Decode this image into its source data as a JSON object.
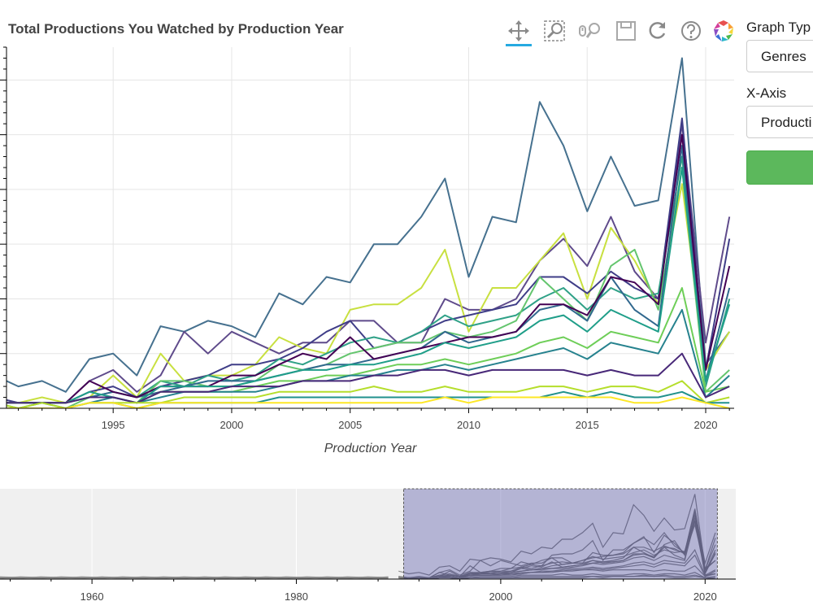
{
  "title": "Total Productions You Watched by Production Year",
  "toolbar": {
    "tools": [
      {
        "name": "pan-tool",
        "icon": "pan-icon",
        "active": true
      },
      {
        "name": "box-zoom-tool",
        "icon": "box-zoom-icon",
        "active": false
      },
      {
        "name": "wheel-zoom-tool",
        "icon": "wheel-zoom-icon",
        "active": false
      },
      {
        "name": "save-tool",
        "icon": "save-icon",
        "active": false
      },
      {
        "name": "reset-tool",
        "icon": "reset-icon",
        "active": false
      },
      {
        "name": "help-tool",
        "icon": "help-icon",
        "active": false
      },
      {
        "name": "bokeh-logo",
        "icon": "bokeh-logo-icon",
        "active": false
      }
    ],
    "active_color": "#26aae1"
  },
  "sidebar": {
    "graph_type_label": "Graph Typ",
    "graph_type_value": "Genres",
    "x_axis_label": "X-Axis",
    "x_axis_value": "Producti",
    "button_color": "#5cb85c"
  },
  "chart_data": [
    {
      "type": "line",
      "title": "Total Productions You Watched by Production Year",
      "xlabel": "Production Year",
      "ylabel": "",
      "xlim": [
        1990.5,
        2021.2
      ],
      "ylim": [
        0,
        33
      ],
      "xticks": [
        1995,
        2000,
        2005,
        2010,
        2015,
        2020
      ],
      "x": [
        1990,
        1991,
        1992,
        1993,
        1994,
        1995,
        1996,
        1997,
        1998,
        1999,
        2000,
        2001,
        2002,
        2003,
        2004,
        2005,
        2006,
        2007,
        2008,
        2009,
        2010,
        2011,
        2012,
        2013,
        2014,
        2015,
        2016,
        2017,
        2018,
        2019,
        2020,
        2021
      ],
      "grid": true,
      "series": [
        {
          "color": "#46718f",
          "values": [
            3,
            2,
            2.5,
            1.5,
            4.5,
            5,
            3,
            7.5,
            7,
            8,
            7.5,
            6.5,
            10.5,
            9.5,
            12,
            11.5,
            15,
            15,
            17.5,
            21,
            12,
            17.5,
            17,
            28,
            24,
            18,
            23,
            18.5,
            19,
            32,
            4,
            7
          ]
        },
        {
          "color": "#5f4b8b",
          "values": [
            1,
            0.5,
            0.5,
            0.5,
            2.5,
            3.5,
            1.5,
            3,
            7,
            5,
            7,
            6,
            5,
            6,
            6,
            8,
            8,
            6,
            6,
            10,
            9,
            9,
            10,
            13.5,
            15.5,
            13,
            17.5,
            12.5,
            10,
            26,
            6,
            17.5
          ]
        },
        {
          "color": "#c8e040",
          "values": [
            0.5,
            0.5,
            1,
            0.5,
            1,
            3,
            1,
            5,
            2.5,
            3,
            3,
            4,
            6.5,
            5.5,
            5,
            9,
            9.5,
            9.5,
            11,
            14.5,
            7,
            11,
            11,
            13.5,
            16,
            10,
            16.5,
            13.5,
            9.5,
            20.5,
            3.5,
            7
          ]
        },
        {
          "color": "#3f3d87",
          "values": [
            1,
            0.5,
            0.5,
            0.5,
            1.5,
            2,
            1,
            2,
            2.5,
            3,
            4,
            4,
            4.5,
            5.5,
            7,
            8,
            5.5,
            6,
            7,
            8,
            8.5,
            9,
            9.5,
            12,
            12,
            10.5,
            12.5,
            11,
            10,
            26.5,
            3.5,
            15.5
          ]
        },
        {
          "color": "#2fa187",
          "values": [
            0.5,
            0.5,
            0.5,
            0.5,
            1,
            1.5,
            1,
            2.5,
            2,
            3,
            2.5,
            3,
            4.5,
            4,
            5,
            6,
            6.5,
            6,
            7,
            8.5,
            7.5,
            8,
            8.5,
            10,
            11,
            9,
            11,
            10,
            10.5,
            23,
            2,
            10
          ]
        },
        {
          "color": "#64c56e",
          "values": [
            0.5,
            0,
            0.5,
            0,
            1,
            1,
            0.5,
            2.5,
            2.5,
            2,
            2,
            2.5,
            4,
            3.5,
            4,
            5,
            5.5,
            6,
            6,
            7,
            6.5,
            7,
            8,
            12,
            10,
            8,
            13,
            14.5,
            9,
            22,
            1.5,
            3.5
          ]
        },
        {
          "color": "#31688e",
          "values": [
            0.5,
            0.5,
            0.5,
            0.5,
            1,
            1.5,
            1,
            1.5,
            2,
            2.5,
            2.5,
            2.5,
            3,
            3.5,
            4,
            4,
            4.5,
            5,
            5.5,
            7,
            6,
            6.5,
            7,
            9,
            9.5,
            8,
            12,
            9,
            7.5,
            24,
            2.5,
            11
          ]
        },
        {
          "color": "#440154",
          "values": [
            0.5,
            0.5,
            0.5,
            0.5,
            2.5,
            1.5,
            1,
            2,
            2,
            2,
            3,
            3,
            4,
            5,
            4.5,
            6.5,
            4.5,
            5,
            5.5,
            6,
            6.5,
            6.5,
            7,
            9.5,
            9.5,
            8.5,
            12,
            11.5,
            9.5,
            25,
            3.5,
            13
          ]
        },
        {
          "color": "#1f9e89",
          "values": [
            0.5,
            0.5,
            0.5,
            0.5,
            1.5,
            1,
            0.5,
            2,
            2,
            2,
            2,
            2.5,
            3,
            3.5,
            3.5,
            4,
            4,
            4.5,
            5,
            6,
            5.5,
            6,
            6.5,
            8,
            8.5,
            7,
            9,
            8,
            7,
            22,
            2.5,
            9.5
          ]
        },
        {
          "color": "#6ece58",
          "values": [
            0.5,
            0.5,
            0.5,
            0.5,
            1,
            1,
            0.5,
            1.5,
            1.5,
            1.5,
            1.5,
            2,
            2.5,
            2.5,
            3,
            3,
            3.5,
            4,
            4,
            4.5,
            4,
            4.5,
            5,
            6,
            6.5,
            5.5,
            7,
            6.5,
            6,
            11,
            1.5,
            2
          ]
        },
        {
          "color": "#26828e",
          "values": [
            0.5,
            0,
            0.5,
            0,
            0.5,
            1,
            0.5,
            1,
            1.5,
            1.5,
            1.5,
            1.5,
            2,
            2.5,
            2.5,
            3,
            3,
            3.5,
            3.5,
            4,
            3.5,
            4,
            4.5,
            5,
            5.5,
            4.5,
            6,
            5.5,
            5,
            9,
            1,
            3
          ]
        },
        {
          "color": "#482878",
          "values": [
            0.5,
            0.5,
            0.5,
            0.5,
            1,
            1,
            0.5,
            1.5,
            1.5,
            1.5,
            2,
            2,
            2,
            2.5,
            2.5,
            2.5,
            3,
            3,
            3.5,
            3.5,
            3,
            3.5,
            3.5,
            3.5,
            3.5,
            3,
            3.5,
            3,
            3,
            5,
            1,
            2
          ]
        },
        {
          "color": "#b5de2b",
          "values": [
            0.5,
            0,
            0.5,
            0,
            0.5,
            0.5,
            0.5,
            0.5,
            1,
            1,
            1,
            1,
            1.5,
            1.5,
            1.5,
            1.5,
            2,
            1.5,
            1.5,
            2,
            1.5,
            1.5,
            1.5,
            2,
            2,
            1.5,
            2,
            2,
            1.5,
            2.5,
            0.5,
            1
          ]
        },
        {
          "color": "#21918c",
          "values": [
            0,
            0,
            0,
            0,
            0.5,
            0.5,
            0,
            0.5,
            0.5,
            0.5,
            0.5,
            0.5,
            1,
            1,
            1,
            1,
            1,
            1,
            1,
            1,
            1,
            1,
            1,
            1,
            1.5,
            1,
            1.5,
            1,
            1,
            1.5,
            0.5,
            0.5
          ]
        },
        {
          "color": "#fde725",
          "values": [
            0,
            0,
            0,
            0,
            0.5,
            0.5,
            0,
            0.5,
            0.5,
            0.5,
            0.5,
            0.5,
            0.5,
            0.5,
            0.5,
            0.5,
            0.5,
            0.5,
            0.5,
            1,
            0.5,
            1,
            1,
            1,
            1,
            1,
            1,
            0.5,
            0.5,
            1,
            0.5,
            0
          ]
        }
      ]
    },
    {
      "type": "line",
      "title": "",
      "xlabel": "",
      "ylabel": "",
      "xlim": [
        1951,
        2023
      ],
      "ylim": [
        0,
        34
      ],
      "xticks": [
        1960,
        1980,
        2000,
        2020
      ],
      "selection_range": [
        1990.5,
        2021.2
      ],
      "selection_color": "#000080",
      "series_color": "#808080",
      "grid": true,
      "background": "#f0f0f0"
    }
  ]
}
